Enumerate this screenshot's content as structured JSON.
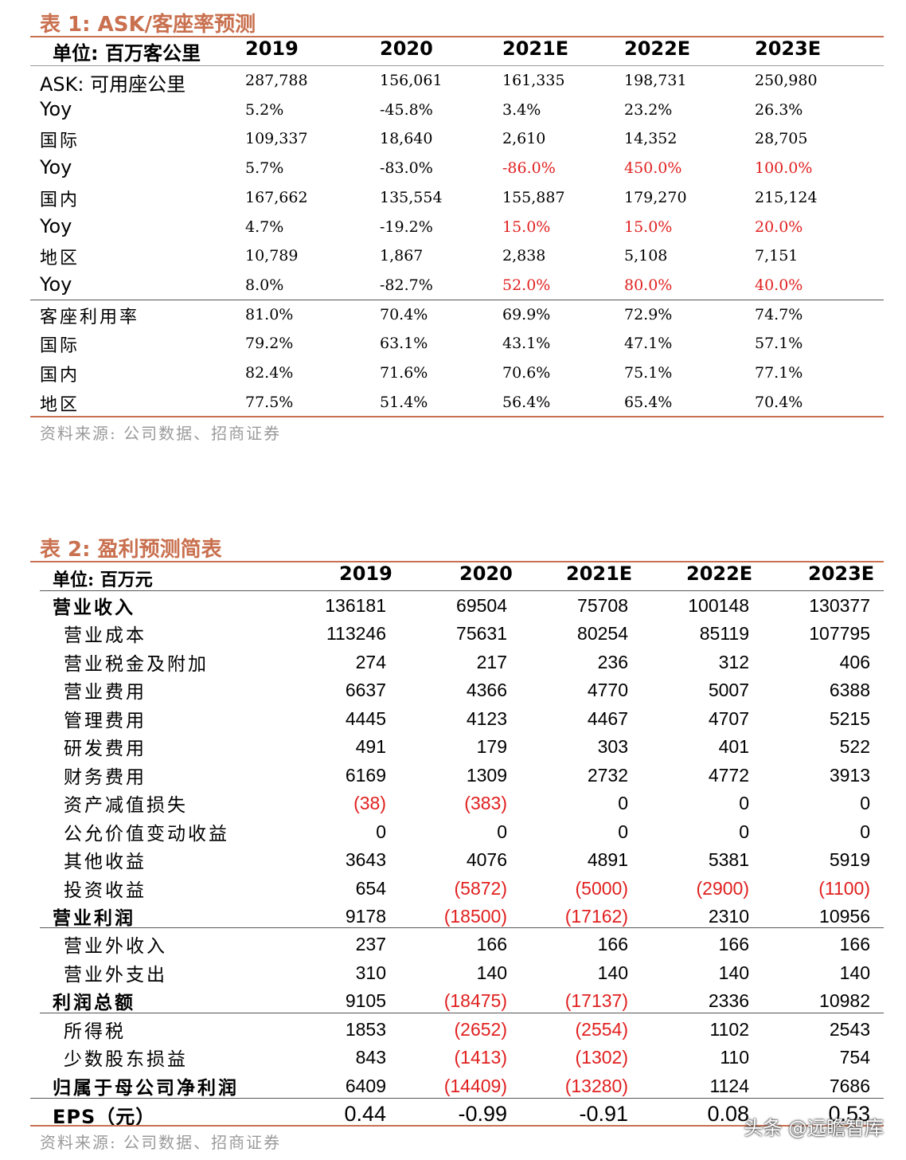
{
  "table1": {
    "title": "表 1:  ASK/客座率预测",
    "unit_label": "单位:  百万客公里",
    "years": [
      "2019",
      "2020",
      "2021E",
      "2022E",
      "2023E"
    ],
    "rows": [
      {
        "label": "ASK:  可用座公里",
        "values": [
          "287,788",
          "156,061",
          "161,335",
          "198,731",
          "250,980"
        ],
        "red": [
          false,
          false,
          false,
          false,
          false
        ]
      },
      {
        "label": "Yoy",
        "values": [
          "5.2%",
          "-45.8%",
          "3.4%",
          "23.2%",
          "26.3%"
        ],
        "red": [
          false,
          false,
          false,
          false,
          false
        ]
      },
      {
        "label": "国际",
        "values": [
          "109,337",
          "18,640",
          "2,610",
          "14,352",
          "28,705"
        ],
        "red": [
          false,
          false,
          false,
          false,
          false
        ]
      },
      {
        "label": "Yoy",
        "values": [
          "5.7%",
          "-83.0%",
          "-86.0%",
          "450.0%",
          "100.0%"
        ],
        "red": [
          false,
          false,
          true,
          true,
          true
        ]
      },
      {
        "label": "国内",
        "values": [
          "167,662",
          "135,554",
          "155,887",
          "179,270",
          "215,124"
        ],
        "red": [
          false,
          false,
          false,
          false,
          false
        ]
      },
      {
        "label": "Yoy",
        "values": [
          "4.7%",
          "-19.2%",
          "15.0%",
          "15.0%",
          "20.0%"
        ],
        "red": [
          false,
          false,
          true,
          true,
          true
        ]
      },
      {
        "label": "地区",
        "values": [
          "10,789",
          "1,867",
          "2,838",
          "5,108",
          "7,151"
        ],
        "red": [
          false,
          false,
          false,
          false,
          false
        ]
      },
      {
        "label": "Yoy",
        "values": [
          "8.0%",
          "-82.7%",
          "52.0%",
          "80.0%",
          "40.0%"
        ],
        "red": [
          false,
          false,
          true,
          true,
          true
        ]
      },
      {
        "label": "客座利用率",
        "values": [
          "81.0%",
          "70.4%",
          "69.9%",
          "72.9%",
          "74.7%"
        ],
        "red": [
          false,
          false,
          false,
          false,
          false
        ]
      },
      {
        "label": "国际",
        "values": [
          "79.2%",
          "63.1%",
          "43.1%",
          "47.1%",
          "57.1%"
        ],
        "red": [
          false,
          false,
          false,
          false,
          false
        ]
      },
      {
        "label": "国内",
        "values": [
          "82.4%",
          "71.6%",
          "70.6%",
          "75.1%",
          "77.1%"
        ],
        "red": [
          false,
          false,
          false,
          false,
          false
        ]
      },
      {
        "label": "地区",
        "values": [
          "77.5%",
          "51.4%",
          "56.4%",
          "65.4%",
          "70.4%"
        ],
        "red": [
          false,
          false,
          false,
          false,
          false
        ]
      }
    ],
    "source": "资料来源:  公司数据、招商证券"
  },
  "table2": {
    "title": "表 2:  盈利预测简表",
    "unit_label": "单位:  百万元",
    "years": [
      "2019",
      "2020",
      "2021E",
      "2022E",
      "2023E"
    ],
    "rows": [
      {
        "label": "营业收入",
        "bold": true,
        "values": [
          "136181",
          "69504",
          "75708",
          "100148",
          "130377"
        ],
        "red": [
          false,
          false,
          false,
          false,
          false
        ]
      },
      {
        "label": "营业成本",
        "bold": false,
        "values": [
          "113246",
          "75631",
          "80254",
          "85119",
          "107795"
        ],
        "red": [
          false,
          false,
          false,
          false,
          false
        ]
      },
      {
        "label": "营业税金及附加",
        "bold": false,
        "values": [
          "274",
          "217",
          "236",
          "312",
          "406"
        ],
        "red": [
          false,
          false,
          false,
          false,
          false
        ]
      },
      {
        "label": "营业费用",
        "bold": false,
        "values": [
          "6637",
          "4366",
          "4770",
          "5007",
          "6388"
        ],
        "red": [
          false,
          false,
          false,
          false,
          false
        ]
      },
      {
        "label": "管理费用",
        "bold": false,
        "values": [
          "4445",
          "4123",
          "4467",
          "4707",
          "5215"
        ],
        "red": [
          false,
          false,
          false,
          false,
          false
        ]
      },
      {
        "label": "研发费用",
        "bold": false,
        "values": [
          "491",
          "179",
          "303",
          "401",
          "522"
        ],
        "red": [
          false,
          false,
          false,
          false,
          false
        ]
      },
      {
        "label": "财务费用",
        "bold": false,
        "values": [
          "6169",
          "1309",
          "2732",
          "4772",
          "3913"
        ],
        "red": [
          false,
          false,
          false,
          false,
          false
        ]
      },
      {
        "label": "资产减值损失",
        "bold": false,
        "values": [
          "(38)",
          "(383)",
          "0",
          "0",
          "0"
        ],
        "red": [
          true,
          true,
          false,
          false,
          false
        ]
      },
      {
        "label": "公允价值变动收益",
        "bold": false,
        "values": [
          "0",
          "0",
          "0",
          "0",
          "0"
        ],
        "red": [
          false,
          false,
          false,
          false,
          false
        ]
      },
      {
        "label": "其他收益",
        "bold": false,
        "values": [
          "3643",
          "4076",
          "4891",
          "5381",
          "5919"
        ],
        "red": [
          false,
          false,
          false,
          false,
          false
        ]
      },
      {
        "label": "投资收益",
        "bold": false,
        "values": [
          "654",
          "(5872)",
          "(5000)",
          "(2900)",
          "(1100)"
        ],
        "red": [
          false,
          true,
          true,
          true,
          true
        ]
      },
      {
        "label": "营业利润",
        "bold": true,
        "values": [
          "9178",
          "(18500)",
          "(17162)",
          "2310",
          "10956"
        ],
        "red": [
          false,
          true,
          true,
          false,
          false
        ]
      },
      {
        "label": "营业外收入",
        "bold": false,
        "values": [
          "237",
          "166",
          "166",
          "166",
          "166"
        ],
        "red": [
          false,
          false,
          false,
          false,
          false
        ]
      },
      {
        "label": "营业外支出",
        "bold": false,
        "values": [
          "310",
          "140",
          "140",
          "140",
          "140"
        ],
        "red": [
          false,
          false,
          false,
          false,
          false
        ]
      },
      {
        "label": "利润总额",
        "bold": true,
        "values": [
          "9105",
          "(18475)",
          "(17137)",
          "2336",
          "10982"
        ],
        "red": [
          false,
          true,
          true,
          false,
          false
        ]
      },
      {
        "label": "所得税",
        "bold": false,
        "values": [
          "1853",
          "(2652)",
          "(2554)",
          "1102",
          "2543"
        ],
        "red": [
          false,
          true,
          true,
          false,
          false
        ]
      },
      {
        "label": "少数股东损益",
        "bold": false,
        "values": [
          "843",
          "(1413)",
          "(1302)",
          "110",
          "754"
        ],
        "red": [
          false,
          true,
          true,
          false,
          false
        ]
      },
      {
        "label": "归属于母公司净利润",
        "bold": true,
        "values": [
          "6409",
          "(14409)",
          "(13280)",
          "1124",
          "7686"
        ],
        "red": [
          false,
          true,
          true,
          false,
          false
        ]
      },
      {
        "label": "EPS（元）",
        "bold": true,
        "values": [
          "0.44",
          "-0.99",
          "-0.91",
          "0.08",
          "0.53"
        ],
        "red": [
          false,
          false,
          false,
          false,
          false
        ]
      }
    ],
    "source": "资料来源:  公司数据、招商证券"
  },
  "watermark": "头条 @远瞻智库",
  "colors": {
    "accent": "#c9704f",
    "negative": "#e0201f",
    "source_text": "#9a9a9a"
  }
}
